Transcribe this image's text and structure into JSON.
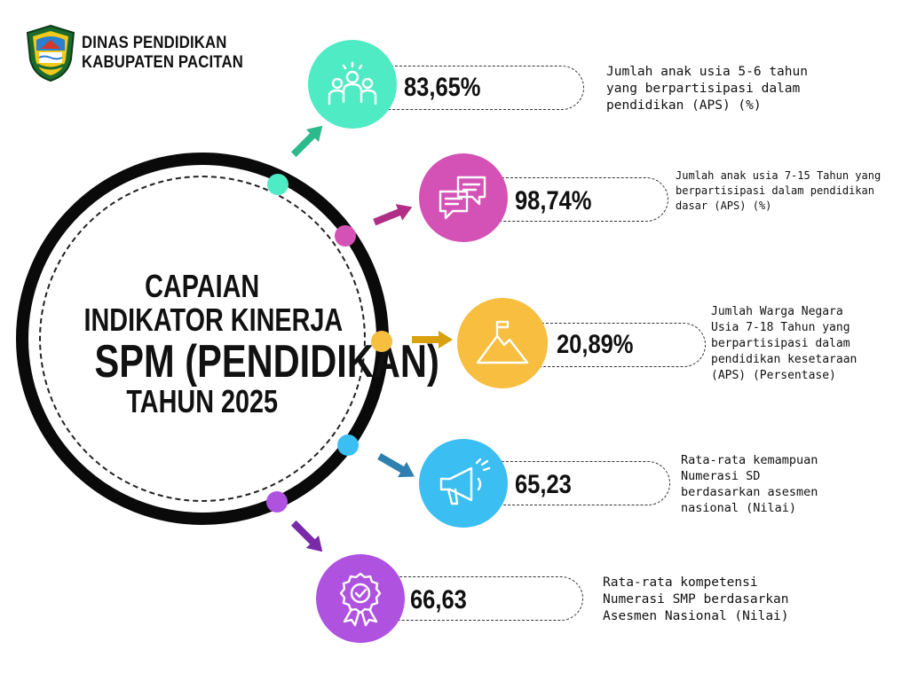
{
  "header": {
    "org_line1": "DINAS PENDIDIKAN",
    "org_line2": "KABUPATEN PACITAN"
  },
  "title": {
    "line1": "CAPAIAN",
    "line2": "INDIKATOR KINERJA",
    "line3": "SPM (PENDIDIKAN)",
    "line4": "TAHUN 2025"
  },
  "indicators": [
    {
      "value": "83,65%",
      "description": "Jumlah anak usia 5-6 tahun\nyang berpartisipasi dalam\npendidikan (APS) (%)",
      "color": "#4FEBC4",
      "icon": "group-icon"
    },
    {
      "value": "98,74%",
      "description": "Jumlah anak usia 7-15 Tahun yang\nberpartisipasi dalam pendidikan\ndasar (APS) (%)",
      "color": "#D452B6",
      "icon": "chat-bubbles-icon"
    },
    {
      "value": "20,89%",
      "description": "Jumlah Warga Negara\nUsia 7-18 Tahun yang\nberpartisipasi dalam\npendidikan kesetaraan\n(APS) (Persentase)",
      "color": "#F7BE3F",
      "icon": "mountain-flag-icon"
    },
    {
      "value": "65,23",
      "description": "Rata-rata kemampuan\nNumerasi SD\nberdasarkan asesmen\nnasional (Nilai)",
      "color": "#3BBEF2",
      "icon": "megaphone-icon"
    },
    {
      "value": "66,63",
      "description": "Rata-rata kompetensi\nNumerasi SMP berdasarkan\nAsesmen Nasional (Nilai)",
      "color": "#B052E0",
      "icon": "award-badge-icon"
    }
  ],
  "colors": {
    "arrow1": "#2CB98C",
    "arrow2": "#B02F86",
    "arrow3": "#D9A010",
    "arrow4": "#2F7FB0",
    "arrow5": "#7A2AA8"
  }
}
